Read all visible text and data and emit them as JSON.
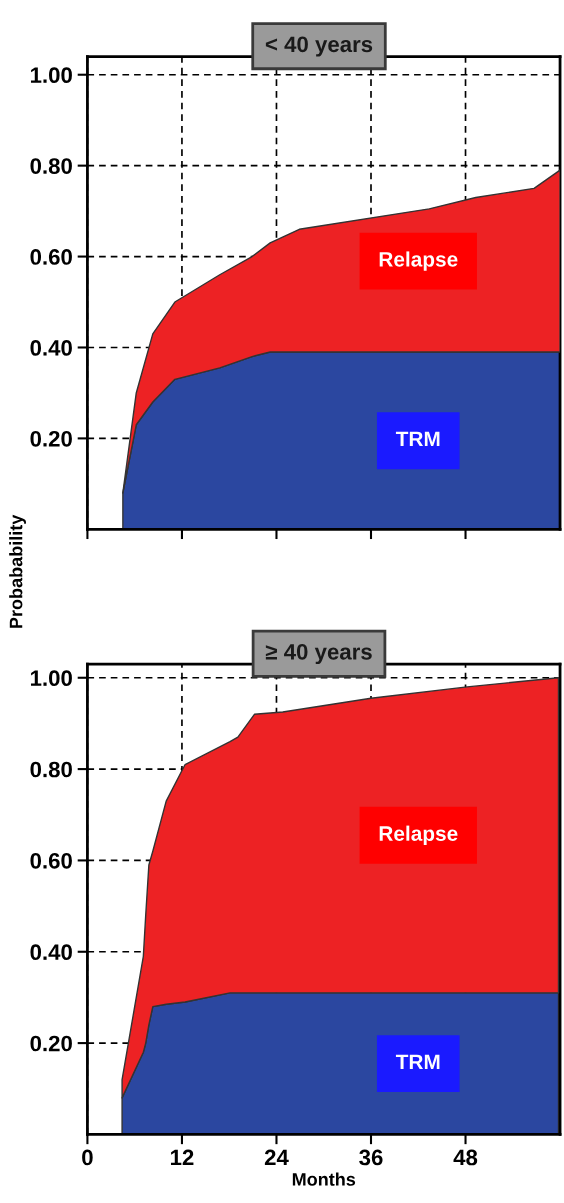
{
  "chart_data": [
    {
      "type": "area",
      "stacked": true,
      "title": "< 40 years",
      "ylabel": "Probabability",
      "x": [
        4.5,
        6.2,
        8.3,
        11.1,
        16.8,
        20.9,
        23.2,
        26.9,
        43.4,
        49.3,
        56.7,
        60
      ],
      "series": [
        {
          "name": "TRM",
          "color": "#2b47a0",
          "values": [
            0.08,
            0.23,
            0.28,
            0.33,
            0.355,
            0.38,
            0.39,
            0.39,
            0.39,
            0.39,
            0.39,
            0.39
          ]
        },
        {
          "name": "Relapse",
          "color": "#ed2224",
          "values": [
            0,
            0.07,
            0.15,
            0.17,
            0.205,
            0.22,
            0.24,
            0.27,
            0.315,
            0.34,
            0.36,
            0.4
          ]
        }
      ],
      "xlim": [
        0,
        60
      ],
      "ylim": [
        0,
        1.04
      ],
      "xticks": [
        0,
        12,
        24,
        36,
        48
      ],
      "yticks": [
        {
          "value": 0.2,
          "label": "0.20"
        },
        {
          "value": 0.4,
          "label": "0.40"
        },
        {
          "value": 0.6,
          "label": "0.60"
        },
        {
          "value": 0.8,
          "label": "0.80"
        },
        {
          "value": 1.0,
          "label": "1.00"
        }
      ],
      "grid": true,
      "line_style": "dashed",
      "tick_labels": "y",
      "legend": false
    },
    {
      "type": "area",
      "stacked": true,
      "title": "≥ 40 years",
      "xlabel": "Months",
      "x": [
        4.4,
        7.1,
        7.4,
        7.8,
        8.3,
        10.0,
        12.4,
        18.1,
        19.1,
        21.2,
        24.8,
        36,
        48.2,
        59.8
      ],
      "series": [
        {
          "name": "TRM",
          "color": "#2b47a0",
          "values": [
            0.08,
            0.18,
            0.2,
            0.24,
            0.28,
            0.285,
            0.29,
            0.31,
            0.31,
            0.31,
            0.31,
            0.31,
            0.31,
            0.31
          ]
        },
        {
          "name": "Relapse",
          "color": "#ed2224",
          "values": [
            0.04,
            0.21,
            0.28,
            0.35,
            0.34,
            0.445,
            0.52,
            0.55,
            0.56,
            0.61,
            0.615,
            0.645,
            0.67,
            0.69
          ]
        }
      ],
      "xlim": [
        0,
        60
      ],
      "ylim": [
        0,
        1.03
      ],
      "xticks": [
        0,
        12,
        24,
        36,
        48
      ],
      "yticks": [
        {
          "value": 0.2,
          "label": "0.20"
        },
        {
          "value": 0.4,
          "label": "0.40"
        },
        {
          "value": 0.6,
          "label": "0.60"
        },
        {
          "value": 0.8,
          "label": "0.80"
        },
        {
          "value": 1.0,
          "label": "1.00"
        }
      ],
      "grid": true,
      "line_style": "dashed",
      "legend": false
    }
  ]
}
